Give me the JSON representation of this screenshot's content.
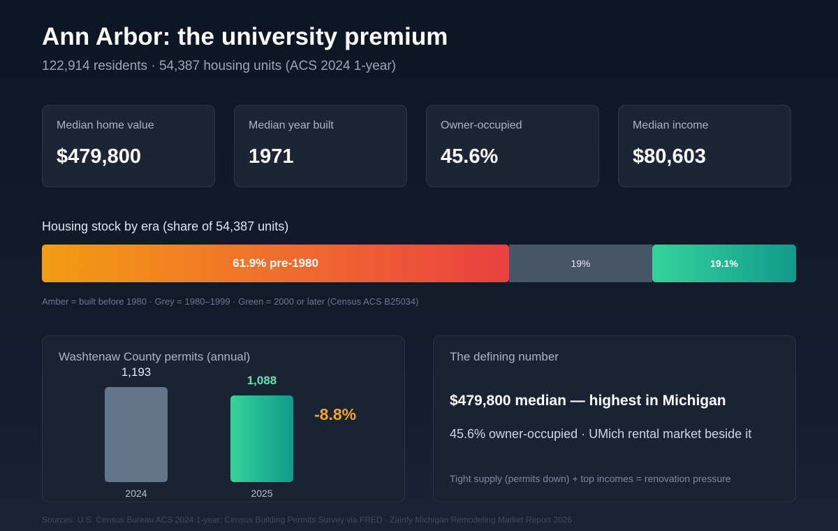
{
  "header": {
    "title": "Ann Arbor: the university premium",
    "subtitle": "122,914 residents · 54,387 housing units (ACS 2024 1-year)"
  },
  "kpis": [
    {
      "label": "Median home value",
      "value": "$479,800"
    },
    {
      "label": "Median year built",
      "value": "1971"
    },
    {
      "label": "Owner-occupied",
      "value": "45.6%"
    },
    {
      "label": "Median income",
      "value": "$80,603"
    }
  ],
  "colors": {
    "pre1980_start": "#f39c12",
    "pre1980_end": "#ea4040",
    "mid": "#475569",
    "new_start": "#34d39a",
    "new_end": "#109a8c",
    "delta": "#f5a524"
  },
  "chart_data": [
    {
      "type": "bar",
      "orientation": "horizontal-stacked",
      "title": "Housing stock by era (share of 54,387 units)",
      "categories": [
        "pre-1980",
        "1980–1999",
        "2000 or later"
      ],
      "values": [
        61.9,
        19,
        19.1
      ],
      "labels": [
        "61.9% pre-1980",
        "19%",
        "19.1%"
      ],
      "unit": "%",
      "note": "Amber = built before 1980 · Grey = 1980–1999 · Green = 2000 or later (Census ACS B25034)"
    },
    {
      "type": "bar",
      "title": "Washtenaw County permits (annual)",
      "categories": [
        "2024",
        "2025"
      ],
      "values": [
        1193,
        1088
      ],
      "labels": [
        "1,193",
        "1,088"
      ],
      "ylim": [
        0,
        1193
      ],
      "change_label": "-8.8%"
    }
  ],
  "defining": {
    "title": "The defining number",
    "headline": "$479,800 median — highest in Michigan",
    "sub": "45.6% owner-occupied · UMich rental market beside it",
    "note": "Tight supply (permits down) + top incomes = renovation pressure"
  },
  "sources": "Sources: U.S. Census Bureau ACS 2024 1-year; Census Building Permits Survey via FRED · Zainfy Michigan Remodeling Market Report 2026"
}
